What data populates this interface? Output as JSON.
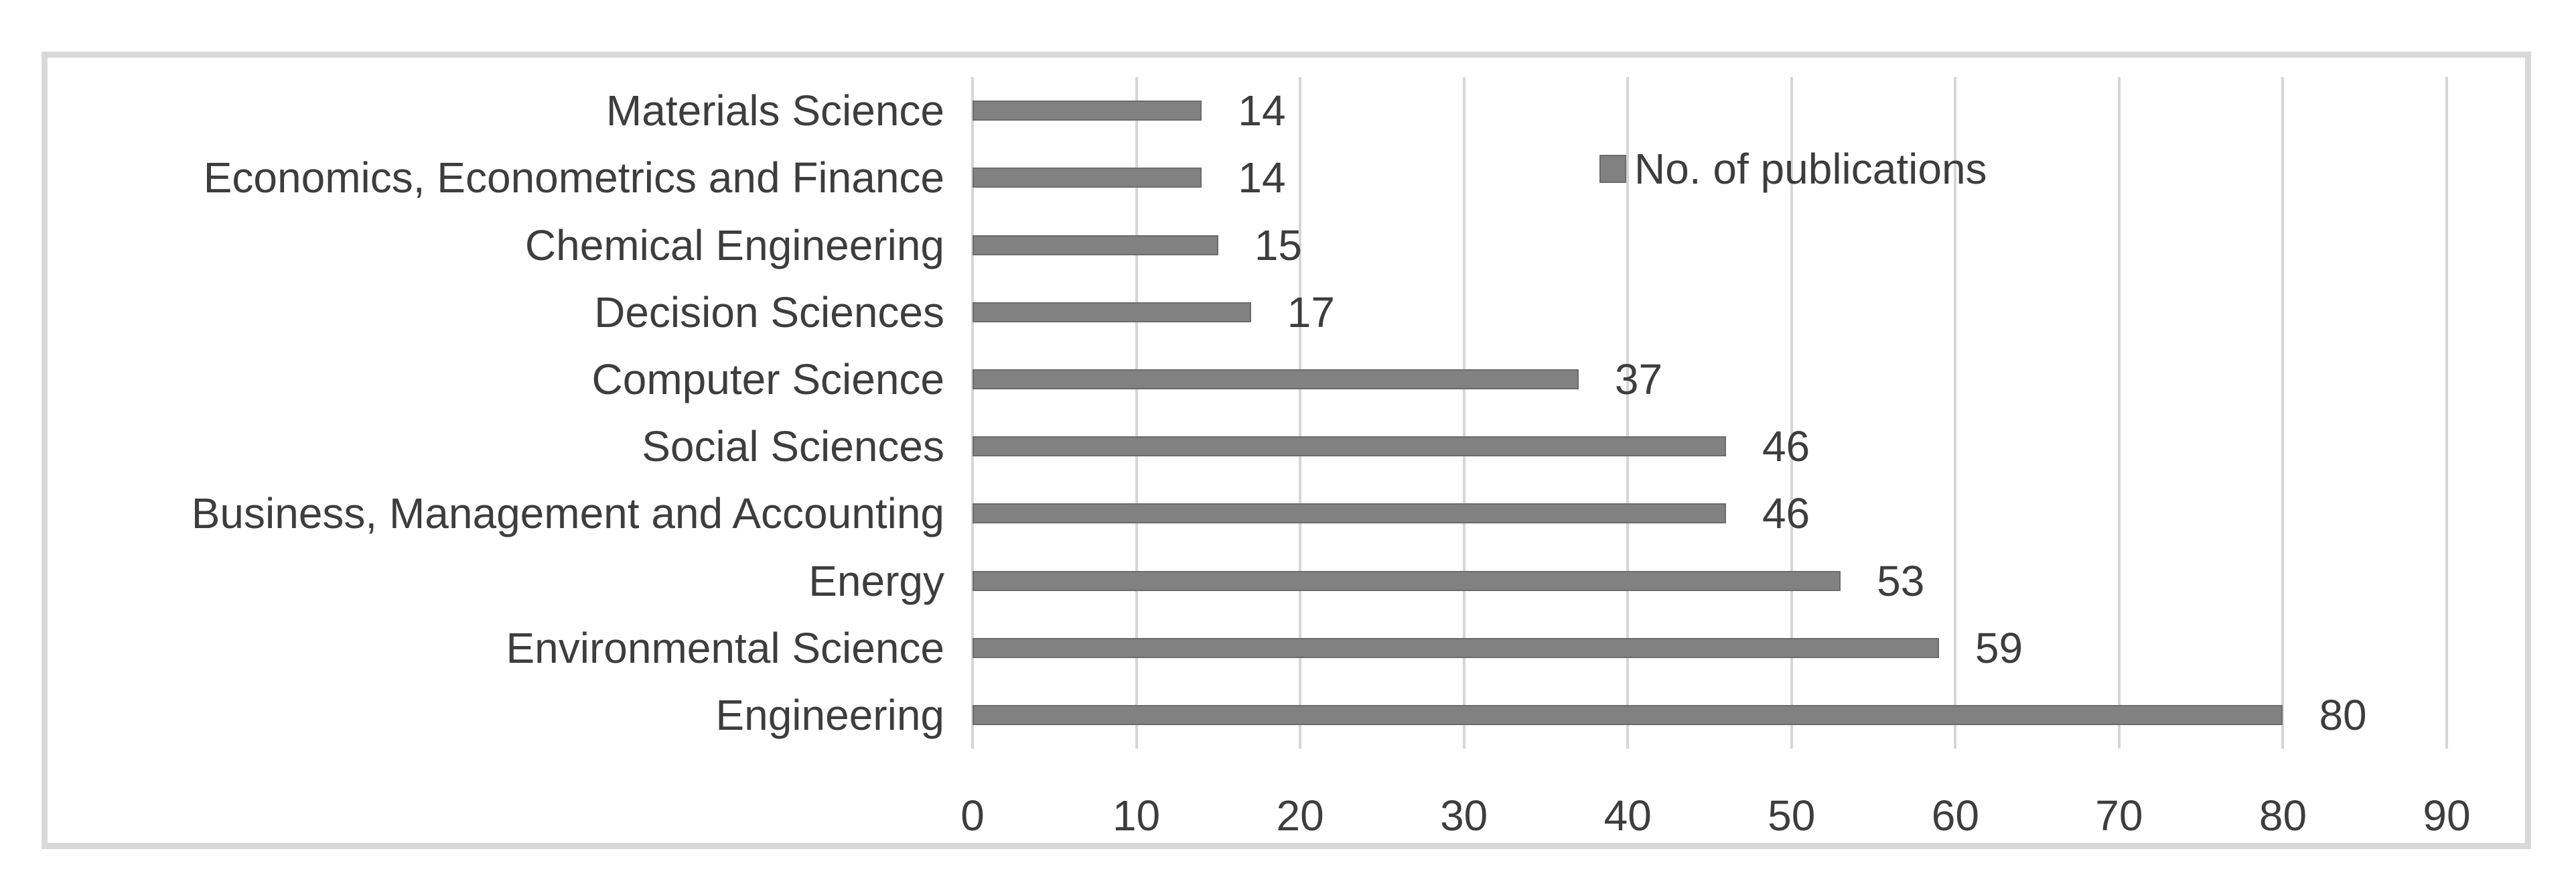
{
  "chart_data": {
    "type": "bar",
    "orientation": "horizontal",
    "title": "",
    "categories": [
      "Materials Science",
      "Economics, Econometrics and Finance",
      "Chemical Engineering",
      "Decision Sciences",
      "Computer Science",
      "Social Sciences",
      "Business, Management and Accounting",
      "Energy",
      "Environmental Science",
      "Engineering"
    ],
    "values": [
      14,
      14,
      15,
      17,
      37,
      46,
      46,
      53,
      59,
      80
    ],
    "series_name": "No. of publications",
    "data_labels": [
      14,
      14,
      15,
      17,
      37,
      46,
      46,
      53,
      59,
      80
    ],
    "xlabel": "",
    "ylabel": "",
    "xlim": [
      0,
      90
    ],
    "xticks": [
      0,
      10,
      20,
      30,
      40,
      50,
      60,
      70,
      80,
      90
    ],
    "grid": "vertical-gridlines-on",
    "legend_position": "top-center-inside-plot"
  },
  "legend": {
    "label": "No. of publications"
  },
  "colors": {
    "bar": "#818181",
    "gridline": "#d6d6d6",
    "frame_border": "#d9d9d9",
    "text": "#3d3d3d",
    "background": "#ffffff"
  }
}
